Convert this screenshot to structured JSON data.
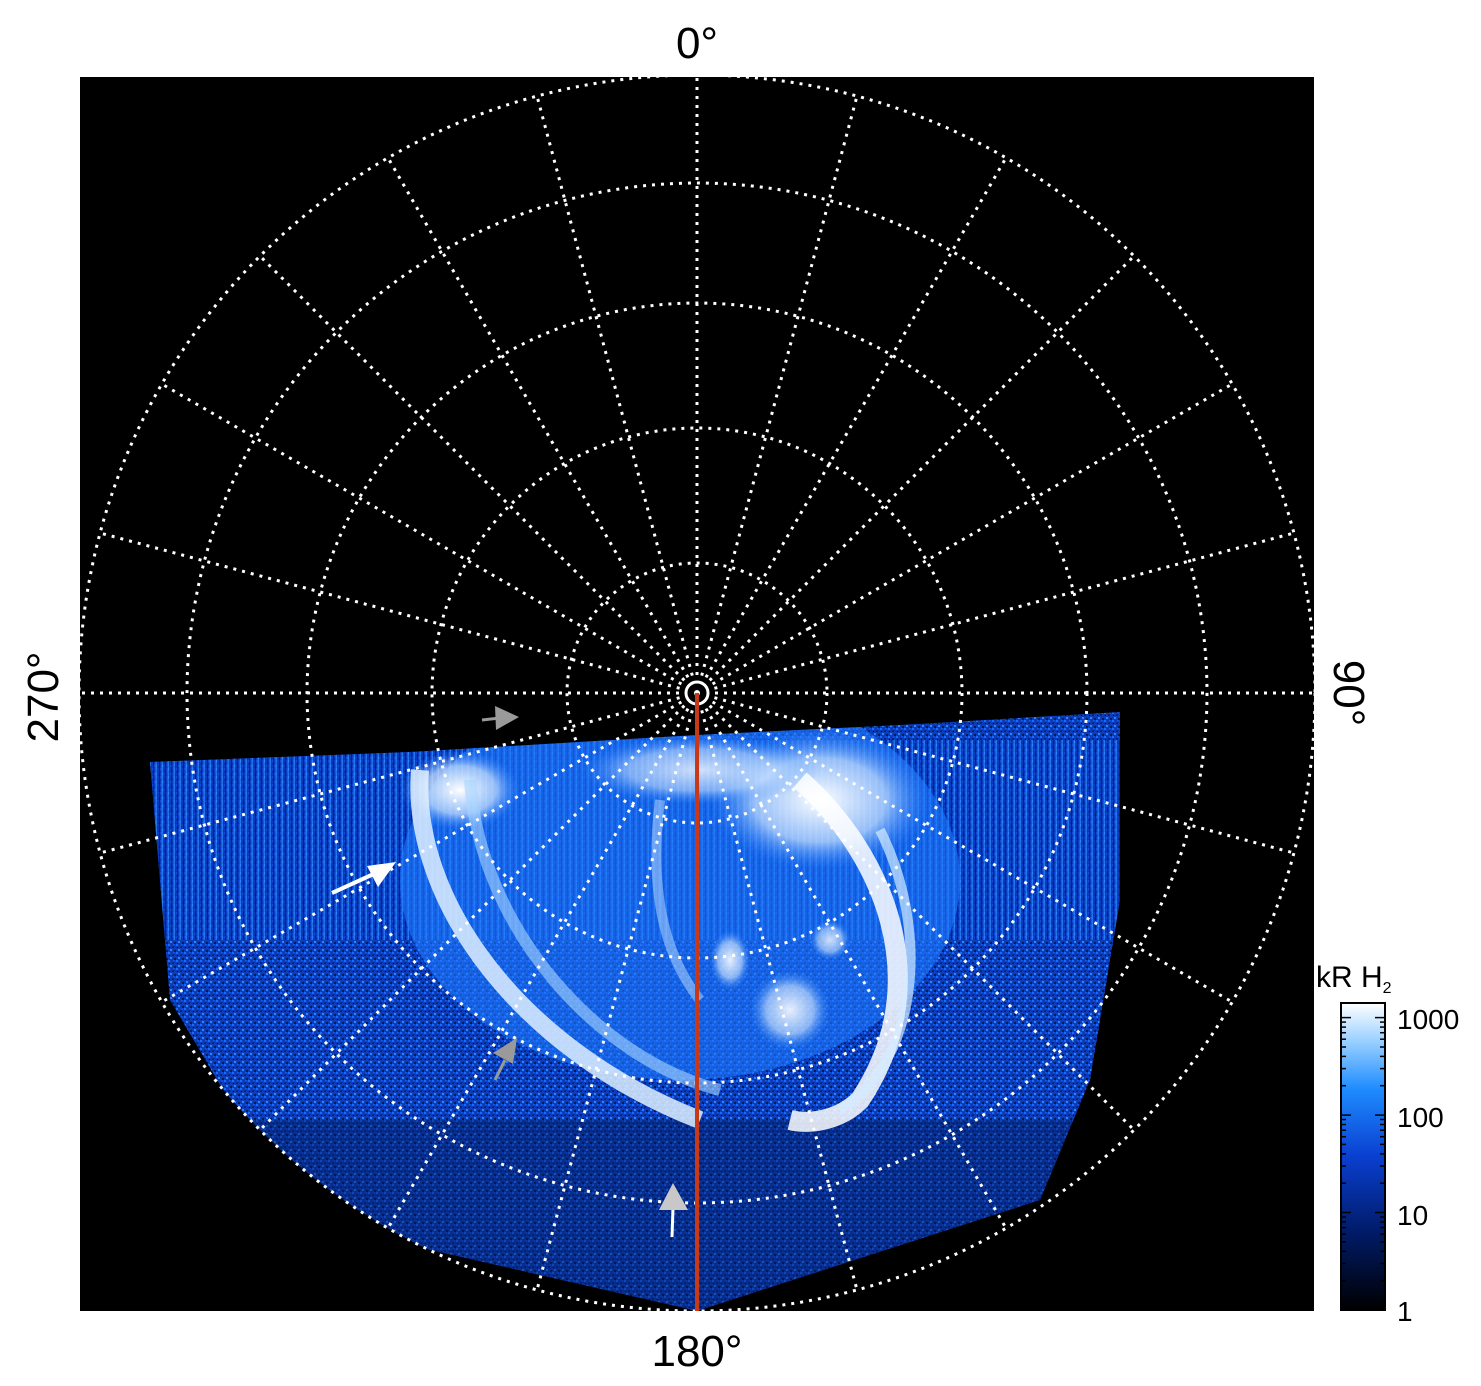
{
  "figure": {
    "labels": {
      "top": "0°",
      "bottom": "180°",
      "left": "270°",
      "right": "90°"
    },
    "colorbar": {
      "title_main": "kR H",
      "title_sub": "2",
      "ticks": [
        "1000",
        "100",
        "10",
        "1"
      ]
    },
    "colors": {
      "background": "#000000",
      "grid": "#ffffff",
      "meridian_line": "#c8391a",
      "arrow_white": "#ffffff",
      "arrow_grey": "#9a9a9a"
    }
  }
}
